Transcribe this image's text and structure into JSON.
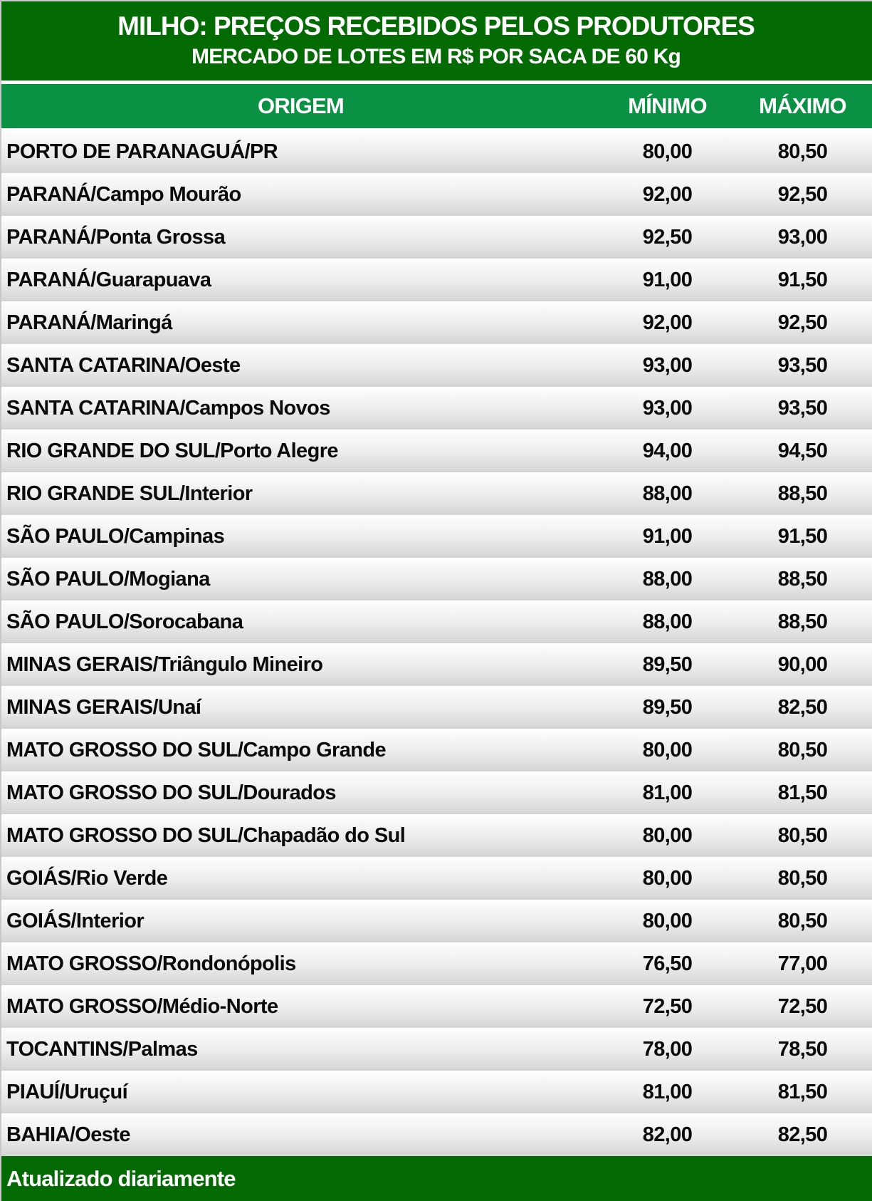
{
  "colors": {
    "banner_green": "#046A04",
    "header_row_green": "#0B9144",
    "footer_green": "#046A04",
    "row_gradient_top": "#FEFEFE",
    "row_gradient_bottom": "#D4D4D4",
    "row_text": "#0B0B0B",
    "header_text": "#FFFFFF"
  },
  "chart_data": {
    "type": "table",
    "title": "MILHO: PREÇOS RECEBIDOS PELOS PRODUTORES",
    "subtitle": "MERCADO DE LOTES EM R$ POR SACA DE 60 Kg",
    "columns": [
      "ORIGEM",
      "MÍNIMO",
      "MÁXIMO"
    ],
    "rows": [
      [
        "PORTO DE PARANAGUÁ/PR",
        "80,00",
        "80,50"
      ],
      [
        "PARANÁ/Campo Mourão",
        "92,00",
        "92,50"
      ],
      [
        "PARANÁ/Ponta Grossa",
        "92,50",
        "93,00"
      ],
      [
        "PARANÁ/Guarapuava",
        "91,00",
        "91,50"
      ],
      [
        "PARANÁ/Maringá",
        "92,00",
        "92,50"
      ],
      [
        "SANTA CATARINA/Oeste",
        "93,00",
        "93,50"
      ],
      [
        "SANTA CATARINA/Campos Novos",
        "93,00",
        "93,50"
      ],
      [
        "RIO GRANDE DO SUL/Porto Alegre",
        "94,00",
        "94,50"
      ],
      [
        "RIO GRANDE SUL/Interior",
        "88,00",
        "88,50"
      ],
      [
        "SÃO PAULO/Campinas",
        "91,00",
        "91,50"
      ],
      [
        "SÃO PAULO/Mogiana",
        "88,00",
        "88,50"
      ],
      [
        "SÃO PAULO/Sorocabana",
        "88,00",
        "88,50"
      ],
      [
        "MINAS GERAIS/Triângulo Mineiro",
        "89,50",
        "90,00"
      ],
      [
        "MINAS GERAIS/Unaí",
        "89,50",
        "82,50"
      ],
      [
        "MATO GROSSO DO SUL/Campo Grande",
        "80,00",
        "80,50"
      ],
      [
        "MATO GROSSO DO SUL/Dourados",
        "81,00",
        "81,50"
      ],
      [
        "MATO GROSSO DO SUL/Chapadão do Sul",
        "80,00",
        "80,50"
      ],
      [
        "GOIÁS/Rio Verde",
        "80,00",
        "80,50"
      ],
      [
        "GOIÁS/Interior",
        "80,00",
        "80,50"
      ],
      [
        "MATO GROSSO/Rondonópolis",
        "76,50",
        "77,00"
      ],
      [
        "MATO GROSSO/Médio-Norte",
        "72,50",
        "72,50"
      ],
      [
        "TOCANTINS/Palmas",
        "78,00",
        "78,50"
      ],
      [
        "PIAUÍ/Uruçuí",
        "81,00",
        "81,50"
      ],
      [
        "BAHIA/Oeste",
        "82,00",
        "82,50"
      ]
    ],
    "footer": "Atualizado diariamente"
  }
}
